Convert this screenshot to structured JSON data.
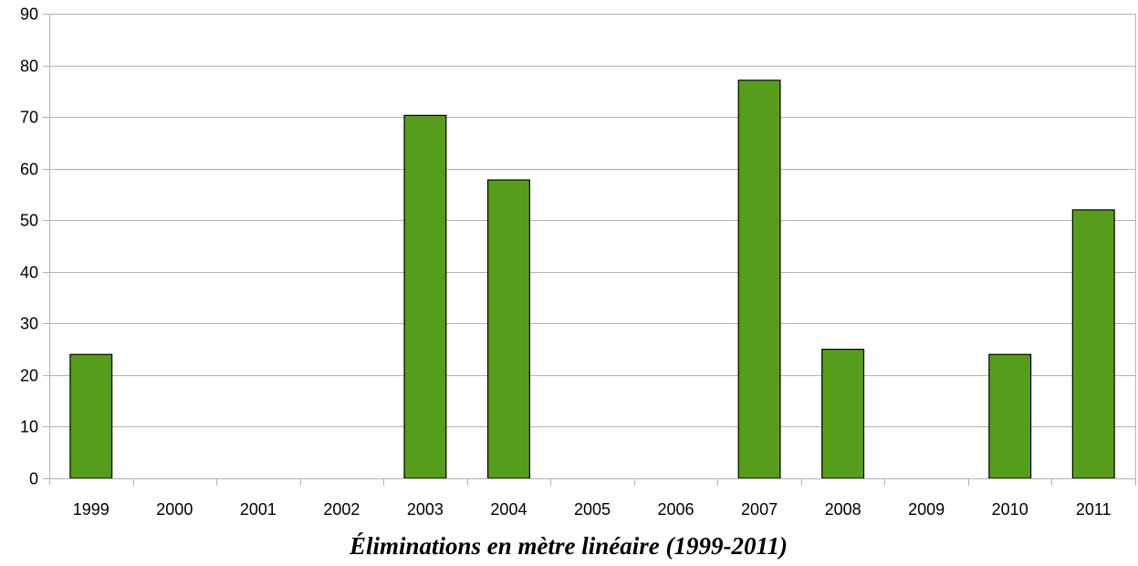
{
  "chart_data": {
    "type": "bar",
    "title": "Éliminations en mètre linéaire (1999-2011)",
    "categories": [
      "1999",
      "2000",
      "2001",
      "2002",
      "2003",
      "2004",
      "2005",
      "2006",
      "2007",
      "2008",
      "2009",
      "2010",
      "2011"
    ],
    "values": [
      24,
      0,
      0,
      0,
      70.3,
      57.8,
      0,
      0,
      77.1,
      25,
      0,
      24,
      52
    ],
    "xlabel": "",
    "ylabel": "",
    "ylim": [
      0,
      90
    ],
    "yticks": [
      "0",
      "10",
      "20",
      "30",
      "40",
      "50",
      "60",
      "70",
      "80",
      "90"
    ],
    "grid": true,
    "legend": "none",
    "bar_color": "#579d1c",
    "bar_border_color": "#000000",
    "grid_color": "#b3b3b3"
  }
}
